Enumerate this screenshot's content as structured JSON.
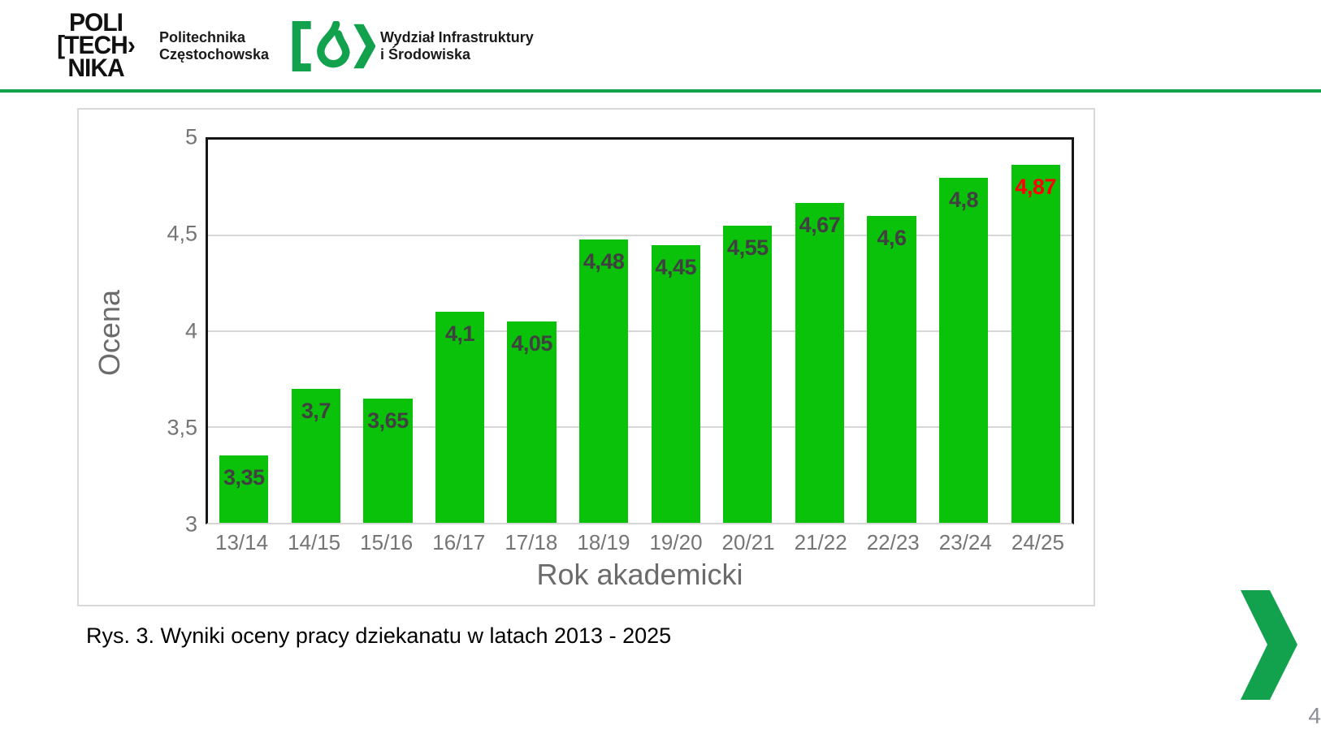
{
  "header": {
    "logo_lines": [
      "POLI",
      "[TECH›",
      "NIKA"
    ],
    "university_name_lines": [
      "Politechnika",
      "Częstochowska"
    ],
    "faculty_name_lines": [
      "Wydział Infrastruktury",
      "i Środowiska"
    ],
    "faculty_icon": "bracket-drop-chevron-icon"
  },
  "colors": {
    "brand_green": "#12a24e",
    "bar_green": "#0ac20a",
    "data_label_gray": "#404040",
    "highlight_red": "#fe0000",
    "axis_gray": "#757575",
    "title_gray": "#6b6b6b"
  },
  "chart_data": {
    "type": "bar",
    "title": "",
    "xlabel": "Rok akademicki",
    "ylabel": "Ocena",
    "ylim": [
      3,
      5
    ],
    "grid": true,
    "legend_position": "none",
    "categories": [
      "13/14",
      "14/15",
      "15/16",
      "16/17",
      "17/18",
      "18/19",
      "19/20",
      "20/21",
      "21/22",
      "22/23",
      "23/24",
      "24/25"
    ],
    "values": [
      3.35,
      3.7,
      3.65,
      4.1,
      4.05,
      4.48,
      4.45,
      4.55,
      4.67,
      4.6,
      4.8,
      4.87
    ],
    "value_labels": [
      "3,35",
      "3,7",
      "3,65",
      "4,1",
      "4,05",
      "4,48",
      "4,45",
      "4,55",
      "4,67",
      "4,6",
      "4,8",
      "4,87"
    ],
    "highlight_index": 11,
    "yticks": [
      {
        "label": "5",
        "value": 5
      },
      {
        "label": "4,5",
        "value": 4.5
      },
      {
        "label": "4",
        "value": 4
      },
      {
        "label": "3,5",
        "value": 3.5
      },
      {
        "label": "3",
        "value": 3
      }
    ]
  },
  "caption": "Rys. 3. Wyniki oceny pracy dziekanatu w latach 2013 - 2025",
  "page_number": "4"
}
